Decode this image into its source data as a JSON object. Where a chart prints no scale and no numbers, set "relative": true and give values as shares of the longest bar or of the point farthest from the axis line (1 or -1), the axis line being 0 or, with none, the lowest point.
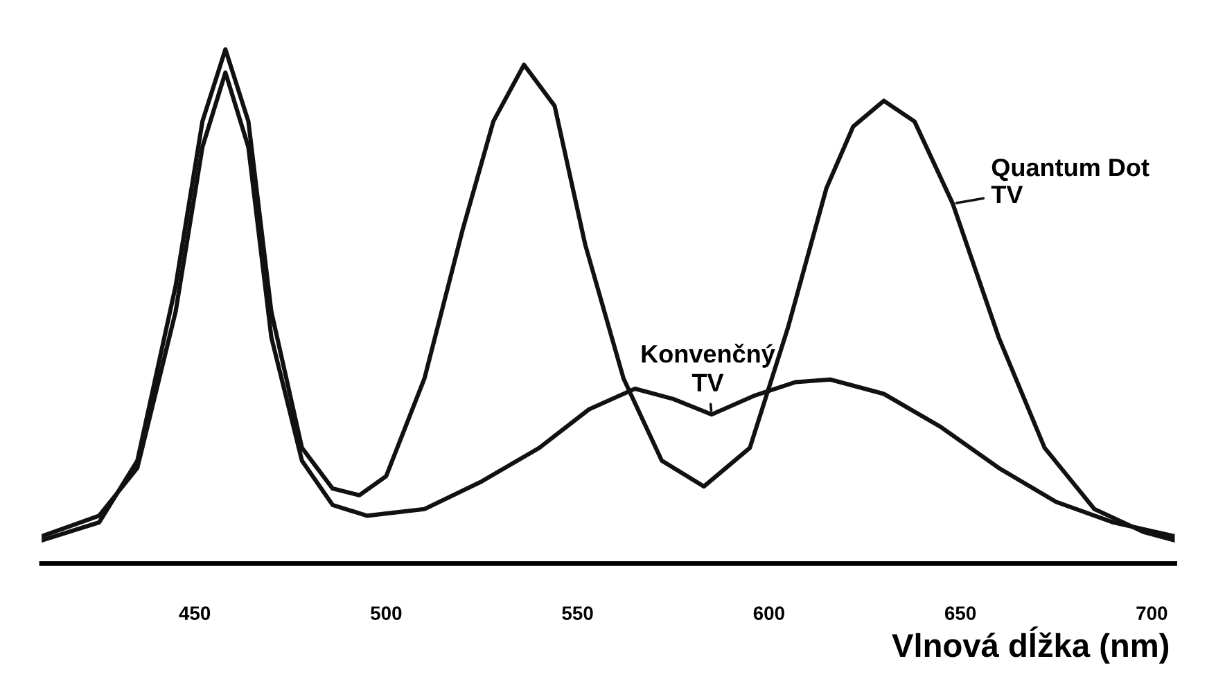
{
  "chart_data": {
    "type": "line",
    "relative": true,
    "xlabel": "Vlnová dĺžka (nm)",
    "xlim": [
      410,
      706
    ],
    "xticks": [
      450,
      500,
      550,
      600,
      650,
      700
    ],
    "grid": false,
    "legend": false,
    "marker": "none",
    "line_style": "solid",
    "series": [
      {
        "name": "Quantum Dot TV",
        "color": "#111111",
        "x": [
          410,
          425,
          435,
          445,
          452,
          458,
          464,
          470,
          478,
          486,
          493,
          500,
          510,
          520,
          528,
          536,
          544,
          552,
          562,
          572,
          583,
          595,
          605,
          615,
          622,
          630,
          638,
          648,
          660,
          672,
          685,
          698,
          706
        ],
        "values": [
          0.045,
          0.08,
          0.2,
          0.54,
          0.86,
          1.0,
          0.86,
          0.49,
          0.225,
          0.146,
          0.133,
          0.17,
          0.36,
          0.65,
          0.86,
          0.97,
          0.89,
          0.62,
          0.36,
          0.2,
          0.15,
          0.225,
          0.46,
          0.73,
          0.85,
          0.9,
          0.86,
          0.7,
          0.44,
          0.225,
          0.106,
          0.061,
          0.045
        ]
      },
      {
        "name": "Konvenčný TV",
        "color": "#111111",
        "x": [
          410,
          425,
          435,
          445,
          452,
          458,
          464,
          470,
          478,
          486,
          495,
          510,
          525,
          540,
          553,
          565,
          575,
          585,
          596,
          607,
          616,
          630,
          645,
          660,
          675,
          690,
          706
        ],
        "values": [
          0.053,
          0.093,
          0.186,
          0.49,
          0.81,
          0.955,
          0.81,
          0.44,
          0.2,
          0.114,
          0.093,
          0.106,
          0.16,
          0.225,
          0.3,
          0.34,
          0.32,
          0.29,
          0.326,
          0.353,
          0.358,
          0.33,
          0.265,
          0.186,
          0.12,
          0.08,
          0.053
        ]
      }
    ]
  }
}
